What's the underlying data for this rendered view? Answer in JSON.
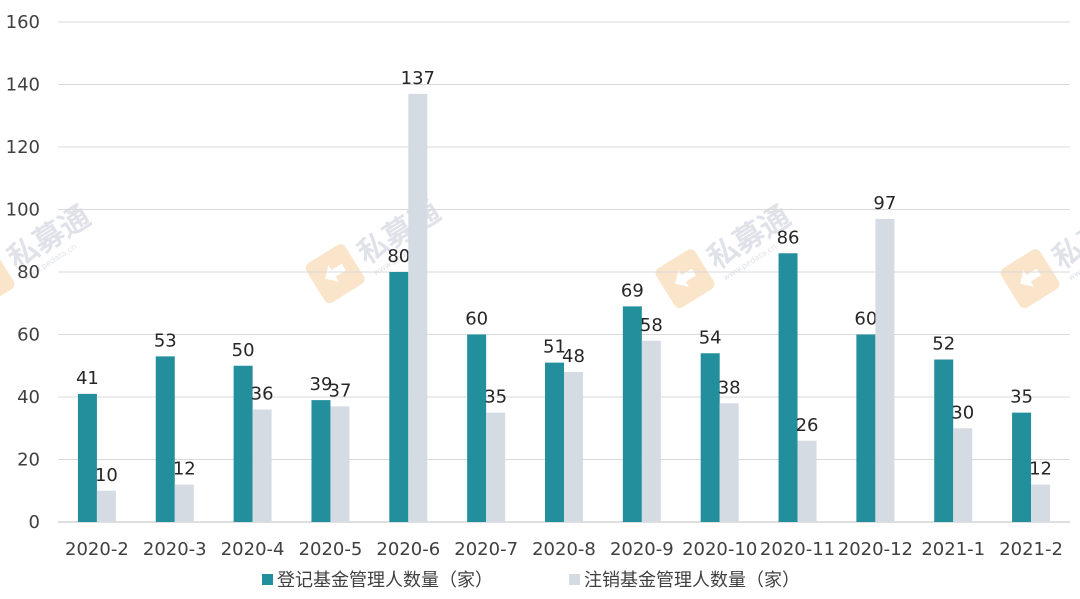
{
  "chart_data": {
    "type": "bar",
    "categories": [
      "2020-2",
      "2020-3",
      "2020-4",
      "2020-5",
      "2020-6",
      "2020-7",
      "2020-8",
      "2020-9",
      "2020-10",
      "2020-11",
      "2020-12",
      "2021-1",
      "2021-2"
    ],
    "series": [
      {
        "name": "登记基金管理人数量（家）",
        "color": "#238f9c",
        "values": [
          41,
          53,
          50,
          39,
          80,
          60,
          51,
          69,
          54,
          86,
          60,
          52,
          35
        ]
      },
      {
        "name": "注销基金管理人数量（家）",
        "color": "#d5dbe3",
        "values": [
          10,
          12,
          36,
          37,
          137,
          35,
          48,
          58,
          38,
          26,
          97,
          30,
          12
        ]
      }
    ],
    "yticks": [
      0,
      20,
      40,
      60,
      80,
      100,
      120,
      140,
      160
    ],
    "ylim": [
      0,
      160
    ],
    "grid": true,
    "legend_position": "bottom",
    "data_labels": true
  },
  "watermark": {
    "text": "私募通",
    "url": "www.pedata.cn"
  }
}
